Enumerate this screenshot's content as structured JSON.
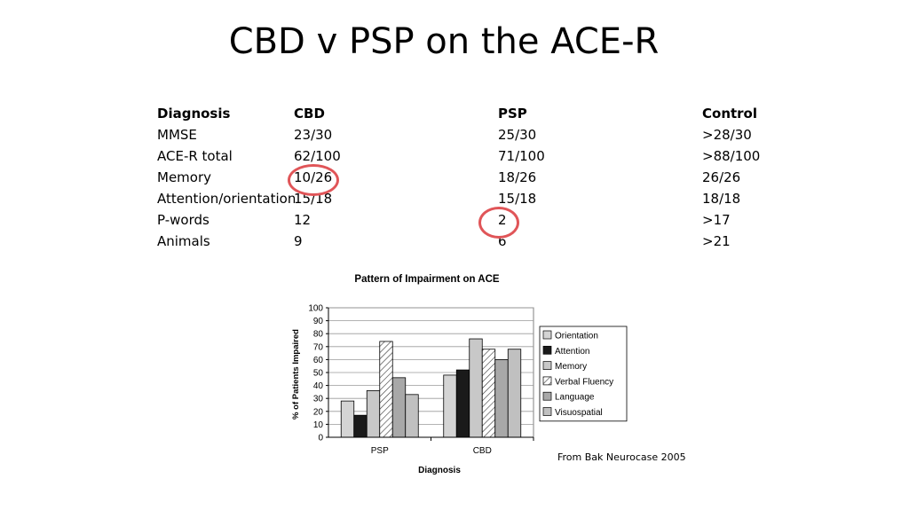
{
  "slide": {
    "title": "CBD v PSP on the ACE-R",
    "source": "From Bak Neurocase 2005"
  },
  "table": {
    "headers": [
      "Diagnosis",
      "CBD",
      "PSP",
      "Control"
    ],
    "rows": [
      [
        "MMSE",
        "23/30",
        "25/30",
        ">28/30"
      ],
      [
        "ACE-R total",
        "62/100",
        "71/100",
        ">88/100"
      ],
      [
        "Memory",
        "10/26",
        "18/26",
        "26/26"
      ],
      [
        "Attention/orientation",
        "15/18",
        "15/18",
        "18/18"
      ],
      [
        "P-words",
        "12",
        "2",
        ">17"
      ],
      [
        "Animals",
        "9",
        "6",
        ">21"
      ]
    ],
    "highlight_color": "#e05558"
  },
  "chart_data": {
    "type": "bar",
    "title": "Pattern of Impairment on ACE",
    "xlabel": "Diagnosis",
    "ylabel": "% of Patients Impaired",
    "categories": [
      "PSP",
      "CBD"
    ],
    "ylim": [
      0,
      100
    ],
    "yticks": [
      0,
      10,
      20,
      30,
      40,
      50,
      60,
      70,
      80,
      90,
      100
    ],
    "grid": true,
    "legend_position": "right",
    "series": [
      {
        "name": "Orientation",
        "values": [
          28,
          48
        ],
        "color": "#d4d4d4",
        "pattern": "solid"
      },
      {
        "name": "Attention",
        "values": [
          17,
          52
        ],
        "color": "#1a1a1a",
        "pattern": "solid"
      },
      {
        "name": "Memory",
        "values": [
          36,
          76
        ],
        "color": "#c8c8c8",
        "pattern": "solid"
      },
      {
        "name": "Verbal Fluency",
        "values": [
          74,
          68
        ],
        "color": "#ffffff",
        "pattern": "hatch"
      },
      {
        "name": "Language",
        "values": [
          46,
          60
        ],
        "color": "#a8a8a8",
        "pattern": "solid"
      },
      {
        "name": "Visuospatial",
        "values": [
          33,
          68
        ],
        "color": "#c0c0c0",
        "pattern": "solid"
      }
    ]
  }
}
